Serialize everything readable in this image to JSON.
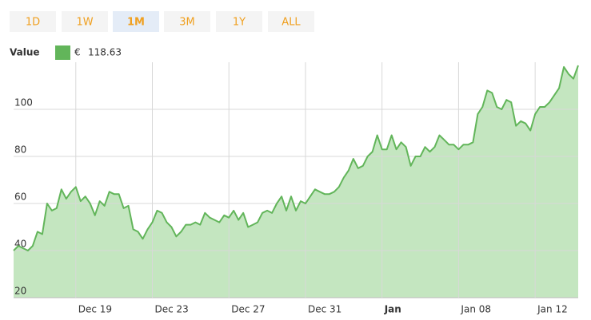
{
  "range_buttons": [
    "1D",
    "1W",
    "1M",
    "3M",
    "1Y",
    "ALL"
  ],
  "selected_range": "1M",
  "chart_data": {
    "type": "area",
    "legend": {
      "label": "Value",
      "currency": "€",
      "value": 118.63
    },
    "color": "#62b55a",
    "fill": "#c4e6c0",
    "grid": true,
    "ylim": [
      20,
      120
    ],
    "yticks": [
      20,
      40,
      60,
      80,
      100
    ],
    "xlim": [
      0,
      118
    ],
    "xticks": [
      {
        "value": 13,
        "label": "Dec 19"
      },
      {
        "value": 29,
        "label": "Dec 23"
      },
      {
        "value": 45,
        "label": "Dec 27"
      },
      {
        "value": 61,
        "label": "Dec 31"
      },
      {
        "value": 77,
        "label": "Jan",
        "bold": true
      },
      {
        "value": 93,
        "label": "Jan 08"
      },
      {
        "value": 109,
        "label": "Jan 12"
      }
    ],
    "values": [
      40,
      42,
      41,
      40,
      42,
      48,
      47,
      60,
      57,
      58,
      66,
      62,
      65,
      67,
      61,
      63,
      60,
      55,
      61,
      59,
      65,
      64,
      64,
      58,
      59,
      49,
      48,
      45,
      49,
      52,
      57,
      56,
      52,
      50,
      46,
      48,
      51,
      51,
      52,
      51,
      56,
      54,
      53,
      52,
      55,
      54,
      57,
      53,
      56,
      50,
      51,
      52,
      56,
      57,
      56,
      60,
      63,
      57,
      63,
      57,
      61,
      60,
      63,
      66,
      65,
      64,
      64,
      65,
      67,
      71,
      74,
      79,
      75,
      76,
      80,
      82,
      89,
      83,
      83,
      89,
      83,
      86,
      84,
      76,
      80,
      80,
      84,
      82,
      84,
      89,
      87,
      85,
      85,
      83,
      85,
      85,
      86,
      98,
      101,
      108,
      107,
      101,
      100,
      104,
      103,
      93,
      95,
      94,
      91,
      98,
      101,
      101,
      103,
      106,
      109,
      118,
      115,
      113,
      118.63
    ]
  }
}
